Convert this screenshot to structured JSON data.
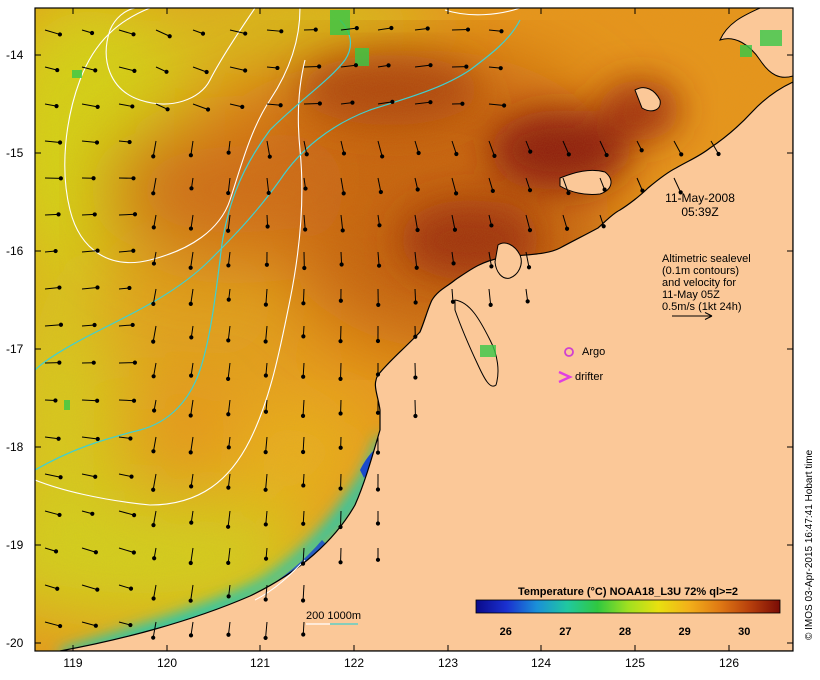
{
  "map": {
    "y_axis_labels": [
      "-14",
      "-15",
      "-16",
      "-17",
      "-18",
      "-19",
      "-20"
    ],
    "x_axis_labels": [
      "119",
      "120",
      "121",
      "122",
      "123",
      "124",
      "125",
      "126"
    ],
    "lat_range": [
      -20.1,
      -13.5
    ],
    "lon_range": [
      118.6,
      126.7
    ]
  },
  "annotations": {
    "date": "11-May-2008",
    "time": "05:39Z",
    "altimetry_lines": [
      "Altimetric sealevel",
      "(0.1m contours)",
      "and velocity for",
      "11-May 05Z",
      "0.5m/s (1kt 24h)"
    ],
    "argo_label": "Argo",
    "drifter_label": "drifter",
    "bathy_label": "200  1000m"
  },
  "colorbar": {
    "title": "Temperature (°C) NOAA18_L3U 72% ql>=2",
    "ticks": [
      "26",
      "27",
      "28",
      "29",
      "30"
    ],
    "range": [
      25.5,
      30.6
    ]
  },
  "credit": "© IMOS 03-Apr-2015 16:47:41 Hobart time",
  "colors": {
    "land": "#fbc898",
    "hot": "#8a1a0a",
    "warm": "#d26a12",
    "mid": "#f2ad1c",
    "cool": "#c8e01a",
    "cold": "#1a20c8",
    "contour_1000m": "#40d0d0",
    "argo": "#d040d0"
  }
}
